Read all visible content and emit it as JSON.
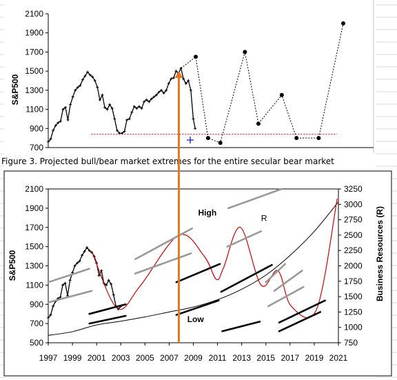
{
  "caption": "Figure 3. Projected bull/bear market extremes for the entire secular bear market",
  "colors": {
    "sp500": "#000000",
    "projection": "#000000",
    "support": "#cc0000",
    "marker": "#0000cc",
    "model": "#cc0000",
    "channel_high": "#999999",
    "channel_low": "#000000",
    "arrow": "#e87722"
  },
  "chart_data": [
    {
      "type": "line",
      "title": "",
      "ylabel": "S&P500",
      "ylim": [
        700,
        2100
      ],
      "yticks": [
        "700",
        "900",
        "1100",
        "1300",
        "1500",
        "1700",
        "1900",
        "2100"
      ],
      "grid": false,
      "series": [
        {
          "kind": "sp500_history",
          "x": [
            1997.0,
            1997.2,
            1997.4,
            1997.6,
            1997.8,
            1998.0,
            1998.2,
            1998.4,
            1998.6,
            1998.8,
            1999.0,
            1999.2,
            1999.4,
            1999.6,
            1999.8,
            2000.0,
            2000.2,
            2000.4,
            2000.6,
            2000.8,
            2001.0,
            2001.2,
            2001.4,
            2001.6,
            2001.8,
            2002.0,
            2002.2,
            2002.4,
            2002.6,
            2002.8,
            2003.0,
            2003.2,
            2003.4,
            2003.6,
            2003.8,
            2004.0,
            2004.2,
            2004.4,
            2004.6,
            2004.8,
            2005.0,
            2005.2,
            2005.4,
            2005.6,
            2005.8,
            2006.0,
            2006.2,
            2006.4,
            2006.6,
            2006.8,
            2007.0,
            2007.2,
            2007.4,
            2007.6,
            2007.8,
            2008.0,
            2008.2,
            2008.4,
            2008.6,
            2008.8,
            2008.95
          ],
          "y": [
            760,
            790,
            880,
            930,
            960,
            975,
            1100,
            1120,
            990,
            1150,
            1230,
            1300,
            1330,
            1350,
            1410,
            1450,
            1490,
            1460,
            1440,
            1400,
            1330,
            1200,
            1250,
            1120,
            1100,
            1150,
            1110,
            1000,
            880,
            850,
            850,
            870,
            990,
            1000,
            1070,
            1130,
            1110,
            1130,
            1110,
            1180,
            1200,
            1180,
            1210,
            1230,
            1250,
            1280,
            1300,
            1270,
            1300,
            1370,
            1420,
            1430,
            1500,
            1480,
            1530,
            1420,
            1370,
            1400,
            1300,
            1000,
            900
          ]
        },
        {
          "kind": "projected_extremes",
          "x": [
            2007.8,
            2009.0,
            2010.0,
            2011.0,
            2013.0,
            2014.1,
            2016.0,
            2017.2,
            2019.0,
            2021.0
          ],
          "y": [
            1530,
            1650,
            800,
            750,
            1700,
            950,
            1250,
            800,
            800,
            2000
          ]
        },
        {
          "kind": "support_level",
          "x": [
            2000.5,
            2020.5
          ],
          "y": [
            840,
            840
          ]
        },
        {
          "kind": "marker",
          "x": [
            2009.0
          ],
          "y": [
            750
          ]
        }
      ]
    },
    {
      "type": "line",
      "title": "",
      "ylabel": "S&P500",
      "y2label": "Business Resources (R)",
      "ylim": [
        500,
        2100
      ],
      "y2lim": [
        750,
        3250
      ],
      "xlim": [
        1997,
        2021
      ],
      "yticks": [
        "500",
        "700",
        "900",
        "1100",
        "1300",
        "1500",
        "1700",
        "1900",
        "2100"
      ],
      "y2ticks": [
        "750",
        "1000",
        "1250",
        "1500",
        "1750",
        "2000",
        "2250",
        "2500",
        "2750",
        "3000",
        "3250"
      ],
      "xticks": [
        "1997",
        "1999",
        "2001",
        "2003",
        "2005",
        "2007",
        "2009",
        "2011",
        "2013",
        "2015",
        "2017",
        "2019",
        "2021"
      ],
      "annotations": [
        {
          "text": "High",
          "x": 2009.4,
          "y": 1825
        },
        {
          "text": "R",
          "x": 2014.6,
          "y": 1765
        },
        {
          "text": "Low",
          "x": 2008.5,
          "y": 715
        }
      ],
      "series": [
        {
          "kind": "sp500_history",
          "x": [
            1997.0,
            1997.2,
            1997.4,
            1997.6,
            1997.8,
            1998.0,
            1998.2,
            1998.4,
            1998.6,
            1998.8,
            1999.0,
            1999.2,
            1999.4,
            1999.6,
            1999.8,
            2000.0,
            2000.2,
            2000.4,
            2000.6,
            2000.8,
            2001.0,
            2001.2,
            2001.4,
            2001.6,
            2001.8,
            2002.0,
            2002.2,
            2002.4,
            2002.6,
            2002.8,
            2003.0
          ],
          "y": [
            760,
            790,
            880,
            930,
            960,
            975,
            1100,
            1120,
            990,
            1150,
            1230,
            1300,
            1330,
            1350,
            1410,
            1450,
            1490,
            1460,
            1440,
            1400,
            1330,
            1200,
            1250,
            1120,
            1100,
            1150,
            1110,
            1000,
            880,
            850,
            880
          ]
        },
        {
          "kind": "business_resources_R",
          "axis": "y2",
          "x": [
            1997,
            1999,
            2001,
            2003,
            2005,
            2007,
            2009,
            2011,
            2013,
            2015,
            2017,
            2019,
            2021
          ],
          "y": [
            870,
            930,
            1040,
            1100,
            1170,
            1250,
            1330,
            1450,
            1620,
            1850,
            2170,
            2560,
            3040
          ]
        },
        {
          "kind": "model",
          "x": [
            2000.6,
            2002.7,
            2004.6,
            2007.8,
            2009.9,
            2010.9,
            2011.5,
            2012.9,
            2014.6,
            2016.0,
            2017.1,
            2019.2,
            2020.9
          ],
          "y": [
            1450,
            860,
            1090,
            1620,
            1400,
            1160,
            1280,
            1700,
            1100,
            1250,
            880,
            850,
            2000
          ]
        },
        {
          "kind": "channel_high",
          "segments": [
            {
              "x": [
                1997.0,
                2000.4
              ],
              "y": [
                1130,
                1270
              ]
            },
            {
              "x": [
                2004.2,
                2008.9
              ],
              "y": [
                1370,
                1690
              ]
            },
            {
              "x": [
                2011.9,
                2016.3
              ],
              "y": [
                1900,
                2100
              ]
            },
            {
              "x": [
                1997.0,
                2000.6
              ],
              "y": [
                920,
                1040
              ]
            },
            {
              "x": [
                2004.2,
                2008.8
              ],
              "y": [
                1220,
                1430
              ]
            },
            {
              "x": [
                2011.8,
                2014.6
              ],
              "y": [
                1500,
                1660
              ]
            },
            {
              "x": [
                2015.0,
                2016.6
              ],
              "y": [
                1130,
                1320
              ]
            },
            {
              "x": [
                2015.7,
                2018.0
              ],
              "y": [
                1040,
                1250
              ]
            },
            {
              "x": [
                2015.2,
                2018.1
              ],
              "y": [
                880,
                1080
              ]
            }
          ]
        },
        {
          "kind": "channel_low",
          "segments": [
            {
              "x": [
                2000.4,
                2003.4
              ],
              "y": [
                800,
                900
              ]
            },
            {
              "x": [
                2000.4,
                2003.4
              ],
              "y": [
                700,
                780
              ]
            },
            {
              "x": [
                2007.6,
                2011.2
              ],
              "y": [
                1130,
                1320
              ]
            },
            {
              "x": [
                2007.6,
                2011.1
              ],
              "y": [
                790,
                940
              ]
            },
            {
              "x": [
                2011.3,
                2015.5
              ],
              "y": [
                1030,
                1310
              ]
            },
            {
              "x": [
                2011.4,
                2014.5
              ],
              "y": [
                620,
                720
              ]
            },
            {
              "x": [
                2016.1,
                2019.9
              ],
              "y": [
                710,
                940
              ]
            },
            {
              "x": [
                2016.1,
                2019.5
              ],
              "y": [
                620,
                820
              ]
            }
          ]
        }
      ]
    }
  ],
  "arrow": {
    "x": 2007.8,
    "from_bottom_y": 500,
    "to_top_y": 1530
  }
}
